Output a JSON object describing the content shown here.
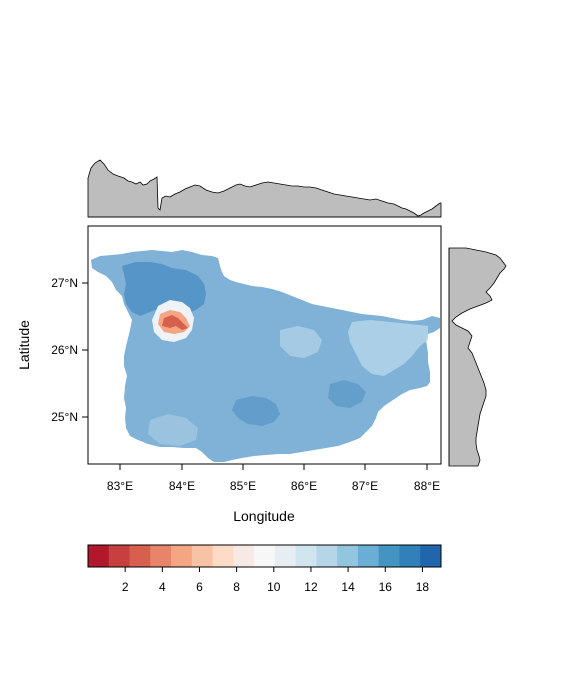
{
  "map": {
    "xlabel": "Longitude",
    "ylabel": "Latitude",
    "lon_ticks": [
      "83°E",
      "84°E",
      "85°E",
      "86°E",
      "87°E",
      "88°E"
    ],
    "lat_ticks": [
      "25°N",
      "26°N",
      "27°N"
    ],
    "lon_range": [
      82.5,
      88.3
    ],
    "lat_range": [
      24.5,
      28.1
    ]
  },
  "colorbar": {
    "ticks": [
      "2",
      "4",
      "6",
      "8",
      "10",
      "12",
      "14",
      "16",
      "18"
    ],
    "range": [
      0,
      19
    ],
    "colors": [
      "#b2182b",
      "#c73f3f",
      "#d6604d",
      "#e8846a",
      "#f4a582",
      "#f8c2a4",
      "#fddbc7",
      "#f7eae4",
      "#f7f7f7",
      "#e6eef4",
      "#d1e5f0",
      "#b5d6e9",
      "#92c5de",
      "#6aadd5",
      "#4393c3",
      "#3280ba",
      "#2166ac"
    ]
  },
  "colors": {
    "profile_fill": "#bdbdbd",
    "map_base": "#7fb2d6",
    "map_dark": "#4f8fc4",
    "map_light": "#b3d4ea",
    "hotspot": "#d6604d"
  }
}
